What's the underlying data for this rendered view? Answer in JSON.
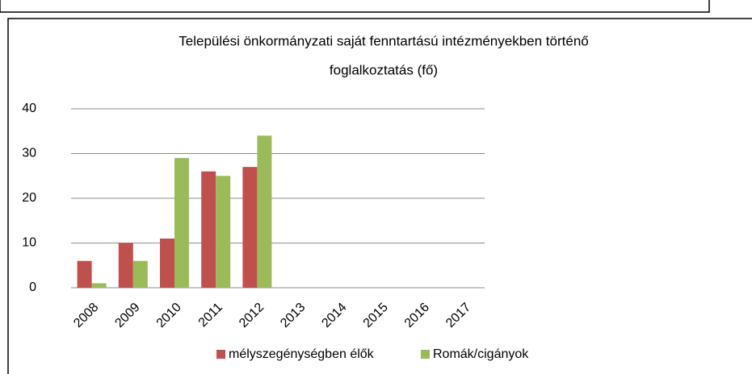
{
  "chart_data": {
    "type": "bar",
    "title": [
      "Települési önkormányzati saját fenntartású intézményekben történő",
      "foglalkoztatás (fő)"
    ],
    "categories": [
      "2008",
      "2009",
      "2010",
      "2011",
      "2012",
      "2013",
      "2014",
      "2015",
      "2016",
      "2017"
    ],
    "series": [
      {
        "name": "mélyszegénységben élők",
        "color": "#c0504d",
        "values": [
          6,
          10,
          11,
          26,
          27,
          null,
          null,
          null,
          null,
          null
        ]
      },
      {
        "name": "Romák/cigányok",
        "color": "#9bbb59",
        "values": [
          1,
          6,
          29,
          25,
          34,
          null,
          null,
          null,
          null,
          null
        ]
      }
    ],
    "ylim": [
      0,
      40
    ],
    "yticks": [
      0,
      10,
      20,
      30,
      40
    ],
    "grid": true,
    "legend": "bottom"
  }
}
